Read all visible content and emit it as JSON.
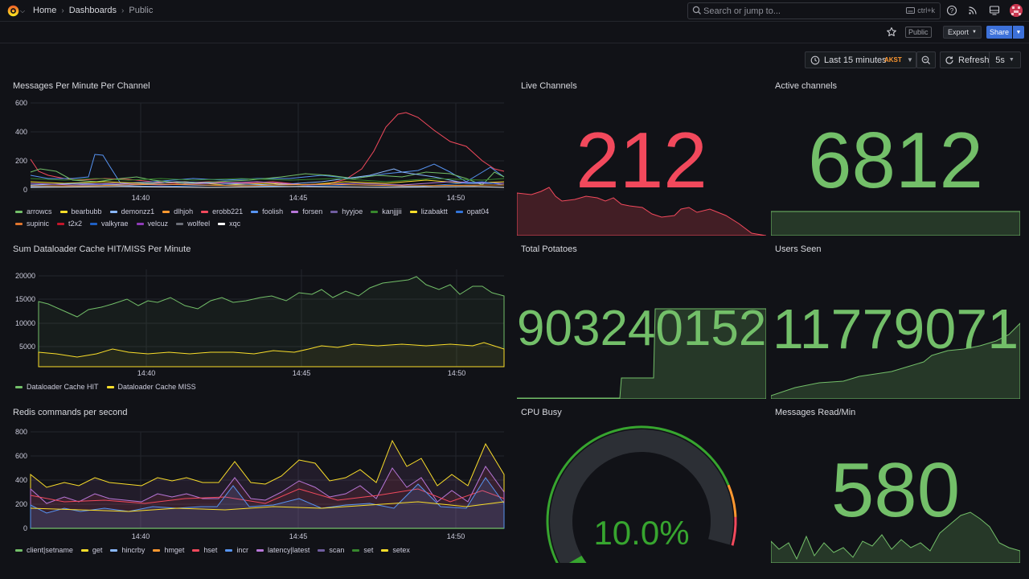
{
  "nav": {
    "breadcrumb": [
      "Home",
      "Dashboards",
      "Public"
    ],
    "search_placeholder": "Search or jump to...",
    "search_shortcut": "ctrl+k"
  },
  "toolbar": {
    "public_badge": "Public",
    "export_label": "Export",
    "share_label": "Share",
    "time_range": "Last 15 minutes",
    "timezone": "AKST",
    "refresh_label": "Refresh",
    "refresh_interval": "5s"
  },
  "colors": {
    "green": "#73bf69",
    "red": "#f2495c",
    "yellow": "#fade2a",
    "blue": "#5794f2",
    "orange": "#ff9830",
    "purple": "#b877d9"
  },
  "panels": {
    "messages": {
      "title": "Messages Per Minute Per Channel",
      "y_ticks": [
        "600",
        "400",
        "200",
        "0"
      ],
      "x_ticks": [
        "14:40",
        "14:45",
        "14:50"
      ],
      "legend": [
        {
          "name": "arrowcs",
          "color": "#73bf69"
        },
        {
          "name": "bearbubb",
          "color": "#fade2a"
        },
        {
          "name": "demonzz1",
          "color": "#8ab8ff"
        },
        {
          "name": "dlhjoh",
          "color": "#ff9830"
        },
        {
          "name": "erobb221",
          "color": "#f2495c"
        },
        {
          "name": "foolish",
          "color": "#5794f2"
        },
        {
          "name": "forsen",
          "color": "#b877d9"
        },
        {
          "name": "hyyjoe",
          "color": "#705da0"
        },
        {
          "name": "kanjjjii",
          "color": "#37872d"
        },
        {
          "name": "lizabaktt",
          "color": "#fade2a"
        },
        {
          "name": "opat04",
          "color": "#3274d9"
        },
        {
          "name": "supinic",
          "color": "#e0752d"
        },
        {
          "name": "t2x2",
          "color": "#c4162a"
        },
        {
          "name": "valkyrae",
          "color": "#1f60c4"
        },
        {
          "name": "velcuz",
          "color": "#8f3bb8"
        },
        {
          "name": "wolfeel",
          "color": "#6c6f78"
        },
        {
          "name": "xqc",
          "color": "#ffffff"
        }
      ]
    },
    "dataloader": {
      "title": "Sum Dataloader Cache HIT/MISS Per Minute",
      "y_ticks": [
        "20000",
        "15000",
        "10000",
        "5000"
      ],
      "x_ticks": [
        "14:40",
        "14:45",
        "14:50"
      ],
      "legend": [
        {
          "name": "Dataloader Cache HIT",
          "color": "#73bf69"
        },
        {
          "name": "Dataloader Cache MISS",
          "color": "#fade2a"
        }
      ]
    },
    "redis": {
      "title": "Redis commands per second",
      "y_ticks": [
        "800",
        "600",
        "400",
        "200",
        "0"
      ],
      "x_ticks": [
        "14:40",
        "14:45",
        "14:50"
      ],
      "legend": [
        {
          "name": "client|setname",
          "color": "#73bf69"
        },
        {
          "name": "get",
          "color": "#fade2a"
        },
        {
          "name": "hincrby",
          "color": "#8ab8ff"
        },
        {
          "name": "hmget",
          "color": "#ff9830"
        },
        {
          "name": "hset",
          "color": "#f2495c"
        },
        {
          "name": "incr",
          "color": "#5794f2"
        },
        {
          "name": "latency|latest",
          "color": "#b877d9"
        },
        {
          "name": "scan",
          "color": "#705da0"
        },
        {
          "name": "set",
          "color": "#37872d"
        },
        {
          "name": "setex",
          "color": "#fade2a"
        }
      ]
    },
    "live_channels": {
      "title": "Live Channels",
      "value": "212",
      "color": "#f2495c"
    },
    "active_channels": {
      "title": "Active channels",
      "value": "6812",
      "color": "#73bf69"
    },
    "total_potatoes": {
      "title": "Total Potatoes",
      "value": "903240152",
      "color": "#73bf69"
    },
    "users_seen": {
      "title": "Users Seen",
      "value": "11779071",
      "color": "#73bf69"
    },
    "cpu_busy": {
      "title": "CPU Busy",
      "value": "10.0%",
      "percent": 10,
      "color": "#37a52f"
    },
    "messages_read": {
      "title": "Messages Read/Min",
      "value": "580",
      "color": "#73bf69"
    }
  }
}
